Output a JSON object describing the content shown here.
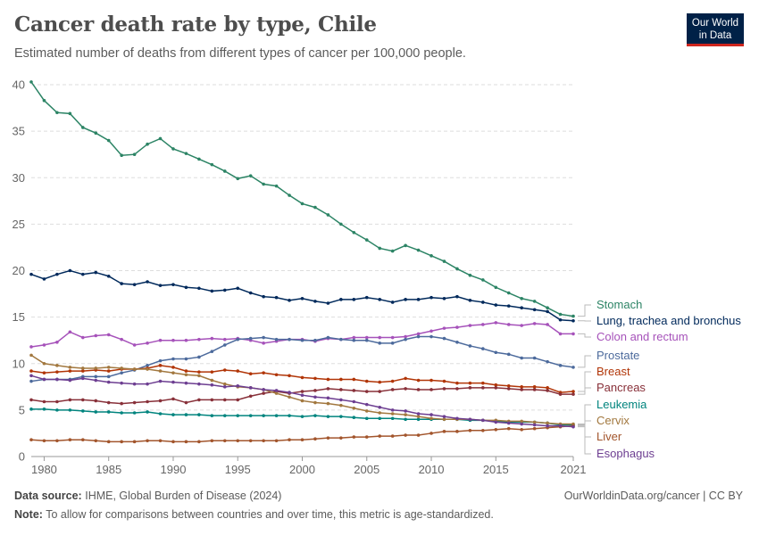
{
  "header": {
    "title": "Cancer death rate by type, Chile",
    "subtitle": "Estimated number of deaths from different types of cancer per 100,000 people.",
    "logo_text": "Our World in Data"
  },
  "footer": {
    "source_label": "Data source:",
    "source": "IHME, Global Burden of Disease (2024)",
    "url": "OurWorldinData.org/cancer | CC BY",
    "note_label": "Note:",
    "note": "To allow for comparisons between countries and over time, this metric is age-standardized."
  },
  "chart_data": {
    "type": "line",
    "title": "Cancer death rate by type, Chile",
    "xlabel": "",
    "ylabel": "",
    "xlim": [
      1979,
      2021
    ],
    "ylim": [
      0,
      40
    ],
    "grid": "horizontal dashed",
    "legend": "right, line-end labels",
    "x_ticks": [
      "1980",
      "1985",
      "1990",
      "1995",
      "2000",
      "2005",
      "2010",
      "2015",
      "2021"
    ],
    "x_tick_values": [
      1980,
      1985,
      1990,
      1995,
      2000,
      2005,
      2010,
      2015,
      2021
    ],
    "y_ticks": [
      "0",
      "5",
      "10",
      "15",
      "20",
      "25",
      "30",
      "35",
      "40"
    ],
    "y_tick_values": [
      0,
      5,
      10,
      15,
      20,
      25,
      30,
      35,
      40
    ],
    "x": [
      1979,
      1980,
      1981,
      1982,
      1983,
      1984,
      1985,
      1986,
      1987,
      1988,
      1989,
      1990,
      1991,
      1992,
      1993,
      1994,
      1995,
      1996,
      1997,
      1998,
      1999,
      2000,
      2001,
      2002,
      2003,
      2004,
      2005,
      2006,
      2007,
      2008,
      2009,
      2010,
      2011,
      2012,
      2013,
      2014,
      2015,
      2016,
      2017,
      2018,
      2019,
      2020,
      2021
    ],
    "series": [
      {
        "name": "Stomach",
        "color": "#2c8465",
        "values": [
          40.3,
          38.3,
          37.0,
          36.9,
          35.4,
          34.8,
          34.0,
          32.4,
          32.5,
          33.6,
          34.2,
          33.1,
          32.6,
          32.0,
          31.4,
          30.7,
          29.9,
          30.2,
          29.3,
          29.1,
          28.1,
          27.2,
          26.8,
          26.0,
          25.0,
          24.1,
          23.3,
          22.4,
          22.1,
          22.7,
          22.2,
          21.6,
          21.0,
          20.2,
          19.5,
          19.0,
          18.2,
          17.6,
          17.0,
          16.7,
          16.0,
          15.3,
          15.1
        ]
      },
      {
        "name": "Lung, trachea and bronchus",
        "color": "#00295b",
        "values": [
          19.6,
          19.1,
          19.6,
          20.0,
          19.6,
          19.8,
          19.4,
          18.6,
          18.5,
          18.8,
          18.4,
          18.5,
          18.2,
          18.1,
          17.8,
          17.9,
          18.1,
          17.6,
          17.2,
          17.1,
          16.8,
          17.0,
          16.7,
          16.5,
          16.9,
          16.9,
          17.1,
          16.9,
          16.6,
          16.9,
          16.9,
          17.1,
          17.0,
          17.2,
          16.8,
          16.6,
          16.3,
          16.2,
          16.0,
          15.8,
          15.6,
          14.7,
          14.6
        ]
      },
      {
        "name": "Colon and rectum",
        "color": "#a652ba",
        "values": [
          11.8,
          12.0,
          12.3,
          13.4,
          12.8,
          13.0,
          13.1,
          12.6,
          12.0,
          12.2,
          12.5,
          12.5,
          12.5,
          12.6,
          12.7,
          12.6,
          12.7,
          12.5,
          12.2,
          12.4,
          12.6,
          12.6,
          12.4,
          12.7,
          12.6,
          12.8,
          12.8,
          12.8,
          12.8,
          12.9,
          13.2,
          13.5,
          13.8,
          13.9,
          14.1,
          14.2,
          14.4,
          14.2,
          14.1,
          14.3,
          14.2,
          13.2,
          13.2
        ]
      },
      {
        "name": "Prostate",
        "color": "#4c6a9c",
        "values": [
          8.1,
          8.3,
          8.3,
          8.3,
          8.6,
          8.6,
          8.6,
          9.0,
          9.3,
          9.8,
          10.3,
          10.5,
          10.5,
          10.7,
          11.3,
          12.0,
          12.6,
          12.7,
          12.8,
          12.6,
          12.6,
          12.5,
          12.5,
          12.8,
          12.6,
          12.5,
          12.5,
          12.2,
          12.2,
          12.6,
          12.9,
          12.9,
          12.7,
          12.3,
          11.9,
          11.6,
          11.2,
          11.0,
          10.6,
          10.6,
          10.2,
          9.8,
          9.6
        ]
      },
      {
        "name": "Breast",
        "color": "#b13507",
        "values": [
          9.2,
          9.0,
          9.1,
          9.2,
          9.2,
          9.3,
          9.2,
          9.4,
          9.4,
          9.5,
          9.8,
          9.6,
          9.2,
          9.1,
          9.1,
          9.3,
          9.2,
          8.9,
          9.0,
          8.8,
          8.7,
          8.5,
          8.4,
          8.3,
          8.3,
          8.3,
          8.1,
          8.0,
          8.1,
          8.4,
          8.2,
          8.2,
          8.1,
          7.9,
          7.9,
          7.9,
          7.7,
          7.6,
          7.5,
          7.5,
          7.4,
          6.9,
          7.0
        ]
      },
      {
        "name": "Pancreas",
        "color": "#883039",
        "values": [
          6.1,
          5.9,
          5.9,
          6.1,
          6.1,
          6.0,
          5.8,
          5.7,
          5.8,
          5.9,
          6.0,
          6.2,
          5.8,
          6.1,
          6.1,
          6.1,
          6.1,
          6.5,
          6.8,
          7.0,
          6.8,
          7.0,
          7.1,
          7.3,
          7.2,
          7.1,
          7.0,
          7.0,
          7.2,
          7.3,
          7.2,
          7.2,
          7.3,
          7.3,
          7.4,
          7.4,
          7.4,
          7.3,
          7.2,
          7.2,
          7.1,
          6.7,
          6.7
        ]
      },
      {
        "name": "Leukemia",
        "color": "#00847e",
        "values": [
          5.1,
          5.1,
          5.0,
          5.0,
          4.9,
          4.8,
          4.8,
          4.7,
          4.7,
          4.8,
          4.6,
          4.5,
          4.5,
          4.5,
          4.4,
          4.4,
          4.4,
          4.4,
          4.4,
          4.4,
          4.4,
          4.3,
          4.4,
          4.3,
          4.3,
          4.2,
          4.1,
          4.1,
          4.1,
          4.0,
          4.0,
          4.0,
          4.0,
          4.0,
          3.9,
          3.9,
          3.8,
          3.7,
          3.7,
          3.7,
          3.6,
          3.4,
          3.4
        ]
      },
      {
        "name": "Cervix",
        "color": "#a2783f",
        "values": [
          10.9,
          10.0,
          9.8,
          9.6,
          9.5,
          9.5,
          9.6,
          9.5,
          9.4,
          9.4,
          9.2,
          9.0,
          8.8,
          8.7,
          8.2,
          7.8,
          7.5,
          7.4,
          7.2,
          6.8,
          6.4,
          6.0,
          5.8,
          5.7,
          5.5,
          5.2,
          4.9,
          4.7,
          4.6,
          4.5,
          4.3,
          4.1,
          4.0,
          4.0,
          4.0,
          3.9,
          3.9,
          3.8,
          3.8,
          3.7,
          3.6,
          3.5,
          3.5
        ]
      },
      {
        "name": "Liver",
        "color": "#a2552c",
        "values": [
          1.8,
          1.7,
          1.7,
          1.8,
          1.8,
          1.7,
          1.6,
          1.6,
          1.6,
          1.7,
          1.7,
          1.6,
          1.6,
          1.6,
          1.7,
          1.7,
          1.7,
          1.7,
          1.7,
          1.7,
          1.8,
          1.8,
          1.9,
          2.0,
          2.0,
          2.1,
          2.1,
          2.2,
          2.2,
          2.3,
          2.3,
          2.5,
          2.7,
          2.7,
          2.8,
          2.8,
          2.9,
          3.0,
          2.9,
          3.0,
          3.1,
          3.2,
          3.3
        ]
      },
      {
        "name": "Esophagus",
        "color": "#6d3e91",
        "values": [
          8.7,
          8.3,
          8.3,
          8.2,
          8.4,
          8.2,
          8.0,
          7.9,
          7.8,
          7.8,
          8.1,
          8.0,
          7.9,
          7.8,
          7.7,
          7.5,
          7.6,
          7.4,
          7.2,
          7.1,
          6.9,
          6.6,
          6.4,
          6.3,
          6.1,
          5.9,
          5.6,
          5.3,
          5.0,
          4.9,
          4.6,
          4.5,
          4.3,
          4.1,
          4.0,
          3.9,
          3.7,
          3.6,
          3.5,
          3.4,
          3.3,
          3.3,
          3.2
        ]
      }
    ]
  }
}
